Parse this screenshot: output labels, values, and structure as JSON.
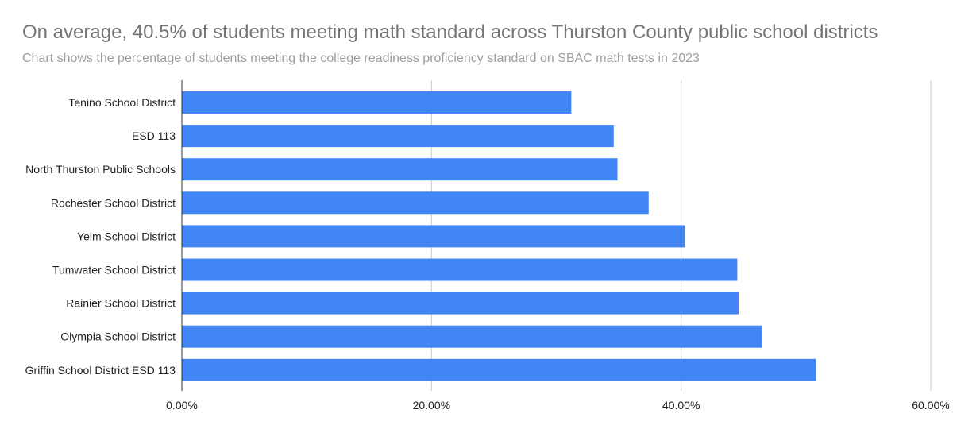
{
  "chart_data": {
    "type": "bar",
    "orientation": "horizontal",
    "title": "On average, 40.5% of students meeting math standard across Thurston County public school districts",
    "subtitle": "Chart shows the percentage of students meeting the college readiness proficiency standard on SBAC math tests in 2023",
    "categories": [
      "Tenino School District",
      "ESD 113",
      "North Thurston Public Schools",
      "Rochester School District",
      "Yelm School District",
      "Tumwater School District",
      "Rainier School District",
      "Olympia School District",
      "Griffin School District ESD 113"
    ],
    "values": [
      31.2,
      34.6,
      34.9,
      37.4,
      40.3,
      44.5,
      44.6,
      46.5,
      50.8
    ],
    "xlim": [
      0,
      60
    ],
    "xticks": [
      0,
      20,
      40,
      60
    ],
    "xtick_labels": [
      "0.00%",
      "20.00%",
      "40.00%",
      "60.00%"
    ],
    "xlabel": "",
    "ylabel": "",
    "grid": true,
    "bar_color": "#4285f4"
  }
}
